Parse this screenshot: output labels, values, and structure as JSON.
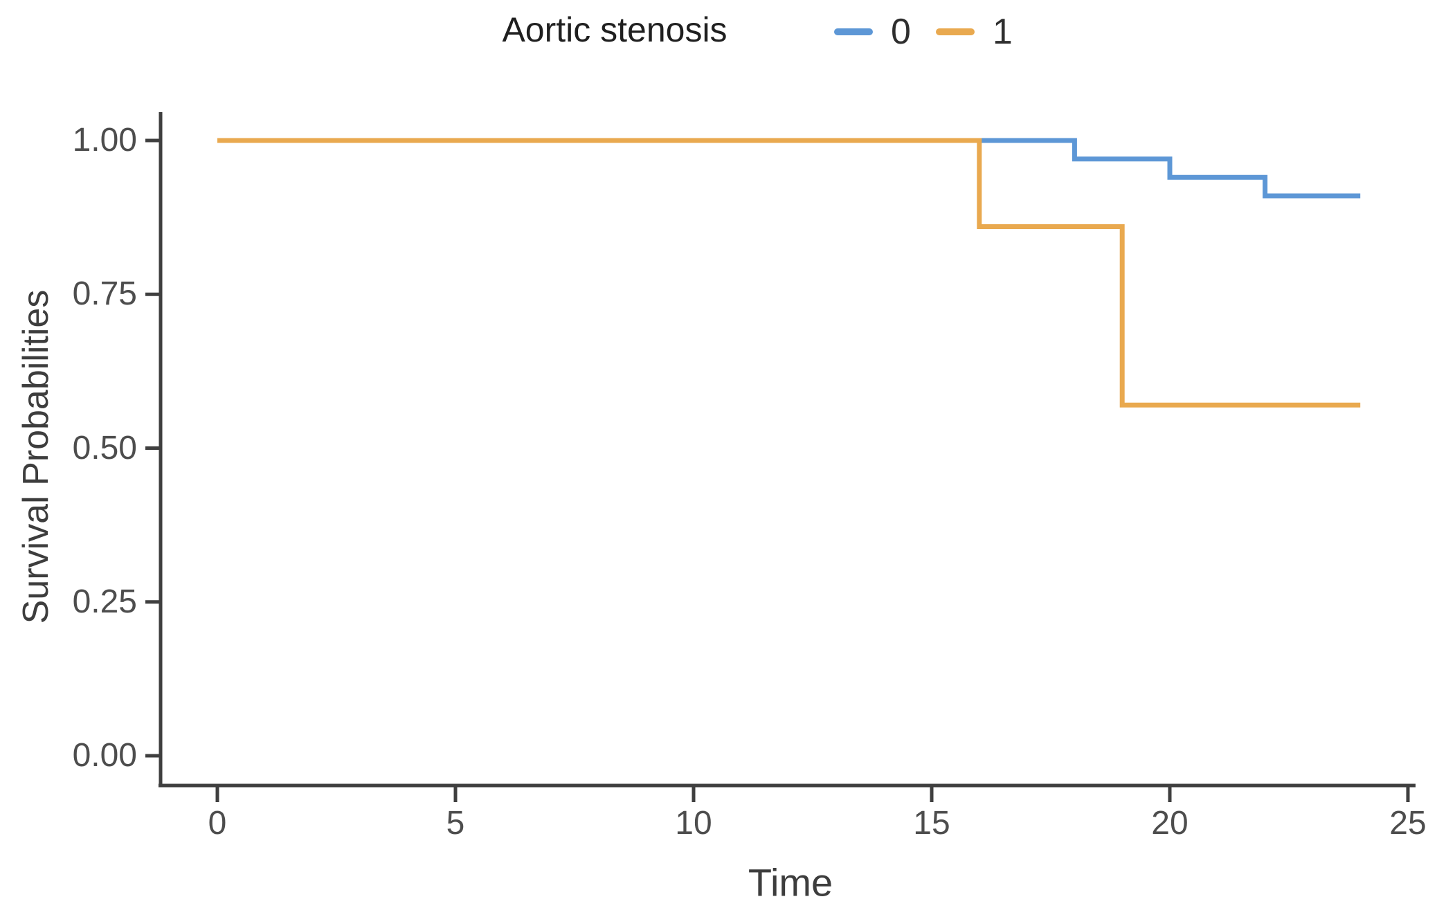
{
  "figure": {
    "legend_title": "Aortic stenosis",
    "x_axis_label": "Time",
    "y_axis_label": "Survival Probabilities"
  },
  "legend": {
    "position": "top-center",
    "items": [
      {
        "label": "0",
        "color": "#5D97D6"
      },
      {
        "label": "1",
        "color": "#E9A94F"
      }
    ]
  },
  "chart_data": {
    "type": "line",
    "subtype": "kaplan-meier-step",
    "title": "Aortic stenosis",
    "xlabel": "Time",
    "ylabel": "Survival Probabilities",
    "xlim": [
      0,
      25
    ],
    "ylim": [
      0,
      1.05
    ],
    "x_ticks": [
      0,
      5,
      10,
      15,
      20,
      25
    ],
    "y_ticks": [
      0,
      0.25,
      0.5,
      0.75,
      1
    ],
    "y_tick_labels": [
      "0.00",
      "0.25",
      "0.50",
      "0.75",
      "1.00"
    ],
    "grid": false,
    "legend_position": "top",
    "series": [
      {
        "name": "0",
        "color": "#5D97D6",
        "points": [
          [
            0,
            1.0
          ],
          [
            18,
            1.0
          ],
          [
            18,
            0.97
          ],
          [
            20,
            0.97
          ],
          [
            20,
            0.94
          ],
          [
            22,
            0.94
          ],
          [
            22,
            0.91
          ],
          [
            24,
            0.91
          ]
        ]
      },
      {
        "name": "1",
        "color": "#E9A94F",
        "points": [
          [
            0,
            1.0
          ],
          [
            16,
            1.0
          ],
          [
            16,
            0.86
          ],
          [
            19,
            0.86
          ],
          [
            19,
            0.57
          ],
          [
            24,
            0.57
          ]
        ]
      }
    ],
    "colors": {
      "axis": "#3f3f3f",
      "tick_label": "#4d4d4d",
      "axis_title": "#3d3d3d",
      "title_text": "#1f1f1f"
    }
  }
}
